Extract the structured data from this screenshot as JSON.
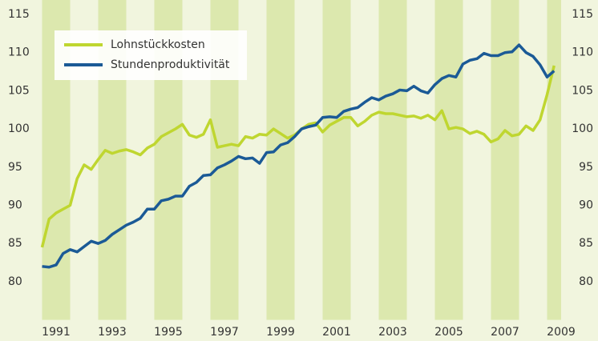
{
  "chart_data": {
    "type": "line",
    "x": [
      1991,
      1991.25,
      1991.5,
      1991.75,
      1992,
      1992.25,
      1992.5,
      1992.75,
      1993,
      1993.25,
      1993.5,
      1993.75,
      1994,
      1994.25,
      1994.5,
      1994.75,
      1995,
      1995.25,
      1995.5,
      1995.75,
      1996,
      1996.25,
      1996.5,
      1996.75,
      1997,
      1997.25,
      1997.5,
      1997.75,
      1998,
      1998.25,
      1998.5,
      1998.75,
      1999,
      1999.25,
      1999.5,
      1999.75,
      2000,
      2000.25,
      2000.5,
      2000.75,
      2001,
      2001.25,
      2001.5,
      2001.75,
      2002,
      2002.25,
      2002.5,
      2002.75,
      2003,
      2003.25,
      2003.5,
      2003.75,
      2004,
      2004.25,
      2004.5,
      2004.75,
      2005,
      2005.25,
      2005.5,
      2005.75,
      2006,
      2006.25,
      2006.5,
      2006.75,
      2007,
      2007.25,
      2007.5,
      2007.75,
      2008,
      2008.25,
      2008.5,
      2008.75,
      2009,
      2009.25
    ],
    "series": [
      {
        "name": "Lohnstückkosten",
        "color": "#bfd630",
        "values": [
          84.5,
          88.2,
          89,
          89.5,
          90,
          93.5,
          95.3,
          94.7,
          96,
          97.2,
          96.8,
          97.1,
          97.3,
          97,
          96.6,
          97.5,
          98,
          99,
          99.5,
          100,
          100.6,
          99.2,
          98.9,
          99.3,
          101.2,
          97.6,
          97.8,
          98,
          97.8,
          99,
          98.8,
          99.3,
          99.2,
          100,
          99.4,
          98.8,
          99.2,
          100,
          100.6,
          100.8,
          99.6,
          100.5,
          101,
          101.5,
          101.5,
          100.4,
          101,
          101.8,
          102.2,
          102,
          102,
          101.8,
          101.6,
          101.7,
          101.4,
          101.8,
          101.2,
          102.4,
          100,
          100.2,
          100,
          99.4,
          99.7,
          99.3,
          98.3,
          98.7,
          99.8,
          99.1,
          99.3,
          100.4,
          99.8,
          101.2,
          104.5,
          108.3
        ]
      },
      {
        "name": "Stundenproduktivität",
        "color": "#1b5a96",
        "values": [
          82,
          81.9,
          82.2,
          83.7,
          84.2,
          83.9,
          84.6,
          85.3,
          85,
          85.4,
          86.2,
          86.8,
          87.4,
          87.8,
          88.3,
          89.5,
          89.5,
          90.6,
          90.8,
          91.2,
          91.2,
          92.5,
          93,
          93.9,
          94,
          94.9,
          95.3,
          95.8,
          96.4,
          96.1,
          96.2,
          95.5,
          96.9,
          97,
          97.9,
          98.2,
          99,
          100,
          100.3,
          100.5,
          101.5,
          101.6,
          101.5,
          102.3,
          102.6,
          102.8,
          103.5,
          104.1,
          103.8,
          104.3,
          104.6,
          105.1,
          105,
          105.6,
          105,
          104.7,
          105.8,
          106.6,
          107,
          106.8,
          108.5,
          109,
          109.2,
          109.9,
          109.6,
          109.6,
          110,
          110.1,
          111,
          110,
          109.5,
          108.4,
          106.8,
          107.6
        ]
      }
    ],
    "xlim": [
      1991,
      2009.5
    ],
    "xticks": [
      {
        "value": 1991.5,
        "label": "1991"
      },
      {
        "value": 1993.5,
        "label": "1993"
      },
      {
        "value": 1995.5,
        "label": "1995"
      },
      {
        "value": 1997.5,
        "label": "1997"
      },
      {
        "value": 1999.5,
        "label": "1999"
      },
      {
        "value": 2001.5,
        "label": "2001"
      },
      {
        "value": 2003.5,
        "label": "2003"
      },
      {
        "value": 2005.5,
        "label": "2005"
      },
      {
        "value": 2007.5,
        "label": "2007"
      },
      {
        "value": 2009.5,
        "label": "2009"
      }
    ],
    "ylim": [
      75,
      115
    ],
    "yticks": [
      80,
      85,
      90,
      95,
      100,
      105,
      110,
      115
    ],
    "legend": "top-left"
  }
}
